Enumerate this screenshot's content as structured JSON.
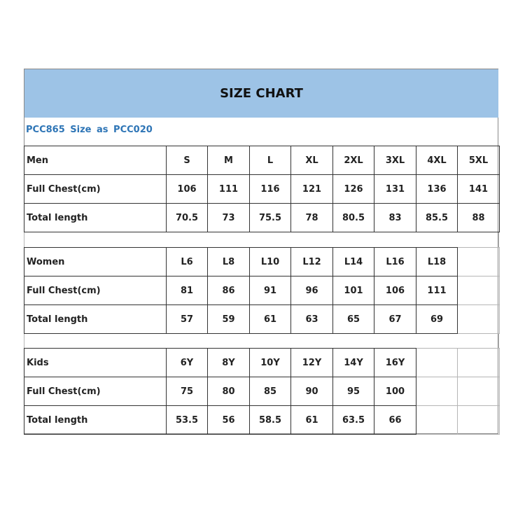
{
  "title": "SIZE CHART",
  "subtitle": "PCC865 Size  as  PCC020",
  "sections": [
    {
      "name": "men",
      "rows": [
        [
          "Men",
          "S",
          "M",
          "L",
          "XL",
          "2XL",
          "3XL",
          "4XL",
          "5XL"
        ],
        [
          "Full Chest(cm)",
          "106",
          "111",
          "116",
          "121",
          "126",
          "131",
          "136",
          "141"
        ],
        [
          "Total length",
          "70.5",
          "73",
          "75.5",
          "78",
          "80.5",
          "83",
          "85.5",
          "88"
        ]
      ]
    },
    {
      "name": "women",
      "rows": [
        [
          "Women",
          "L6",
          "L8",
          "L10",
          "L12",
          "L14",
          "L16",
          "L18",
          ""
        ],
        [
          "Full Chest(cm)",
          "81",
          "86",
          "91",
          "96",
          "101",
          "106",
          "111",
          ""
        ],
        [
          "Total length",
          "57",
          "59",
          "61",
          "63",
          "65",
          "67",
          "69",
          ""
        ]
      ]
    },
    {
      "name": "kids",
      "rows": [
        [
          "Kids",
          "6Y",
          "8Y",
          "10Y",
          "12Y",
          "14Y",
          "16Y",
          "",
          ""
        ],
        [
          "Full Chest(cm)",
          "75",
          "80",
          "85",
          "90",
          "95",
          "100",
          "",
          ""
        ],
        [
          "Total length",
          "53.5",
          "56",
          "58.5",
          "61",
          "63.5",
          "66",
          "",
          ""
        ]
      ]
    }
  ],
  "colors": {
    "banner": "#9dc3e6",
    "subtitle": "#2e75b6"
  }
}
